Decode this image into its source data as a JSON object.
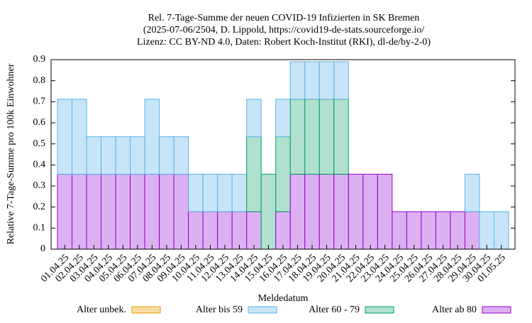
{
  "chart_data": {
    "type": "stacked_bar",
    "title_lines": [
      "Rel. 7-Tage-Summe der neuen COVID-19 Infizierten in SK Bremen",
      "(2025-07-06/2504, D. Lippold, https://covid19-de-stats.sourceforge.io/",
      "Lizenz: CC BY-ND 4.0, Daten: Robert Koch-Institut (RKI), dl-de/by-2-0)"
    ],
    "y_label": "Relative 7-Tage-Summe pro 100k Einwohner",
    "x_label": "Meldedatum",
    "categories": [
      "01.04.25",
      "02.04.25",
      "03.04.25",
      "04.04.25",
      "05.04.25",
      "06.04.25",
      "07.04.25",
      "08.04.25",
      "09.04.25",
      "10.04.25",
      "11.04.25",
      "12.04.25",
      "13.04.25",
      "14.04.25",
      "15.04.25",
      "16.04.25",
      "17.04.25",
      "18.04.25",
      "19.04.25",
      "20.04.25",
      "21.04.25",
      "22.04.25",
      "23.04.25",
      "24.04.25",
      "25.04.25",
      "26.04.25",
      "27.04.25",
      "28.04.25",
      "29.04.25",
      "30.04.25",
      "01.05.25"
    ],
    "series": [
      {
        "name": "Alter unbek.",
        "color": "#f9dba3",
        "stroke": "#e69f00",
        "values": [
          0,
          0,
          0,
          0,
          0,
          0,
          0,
          0,
          0,
          0,
          0,
          0,
          0,
          0,
          0,
          0,
          0,
          0,
          0,
          0,
          0,
          0,
          0,
          0,
          0,
          0,
          0,
          0,
          0,
          0,
          0
        ]
      },
      {
        "name": "Alter bis 59",
        "color": "#c8e5f7",
        "stroke": "#56b4e9",
        "values": [
          0.356,
          0.356,
          0.178,
          0.178,
          0.178,
          0.178,
          0.356,
          0.178,
          0.178,
          0.178,
          0.178,
          0.178,
          0.178,
          0.178,
          0,
          0.178,
          0.178,
          0.178,
          0.178,
          0.178,
          0,
          0,
          0,
          0,
          0,
          0,
          0,
          0,
          0.178,
          0.178,
          0.178
        ]
      },
      {
        "name": "Alter 60 - 79",
        "color": "#b0e1ce",
        "stroke": "#009e73",
        "values": [
          0,
          0,
          0,
          0,
          0,
          0,
          0,
          0,
          0,
          0,
          0,
          0,
          0,
          0.356,
          0.356,
          0.356,
          0.356,
          0.356,
          0.356,
          0.356,
          0,
          0,
          0,
          0,
          0,
          0,
          0,
          0,
          0,
          0,
          0
        ]
      },
      {
        "name": "Alter ab 80",
        "color": "#ddb0f2",
        "stroke": "#9400d3",
        "values": [
          0.356,
          0.356,
          0.356,
          0.356,
          0.356,
          0.356,
          0.356,
          0.356,
          0.356,
          0.178,
          0.178,
          0.178,
          0.178,
          0.178,
          0,
          0.178,
          0.356,
          0.356,
          0.356,
          0.356,
          0.356,
          0.356,
          0.356,
          0.178,
          0.178,
          0.178,
          0.178,
          0.178,
          0.178,
          0,
          0
        ]
      }
    ],
    "ylim": [
      0,
      0.9
    ],
    "yticks": [
      0,
      0.1,
      0.2,
      0.3,
      0.4,
      0.5,
      0.6,
      0.7,
      0.8,
      0.9
    ]
  }
}
